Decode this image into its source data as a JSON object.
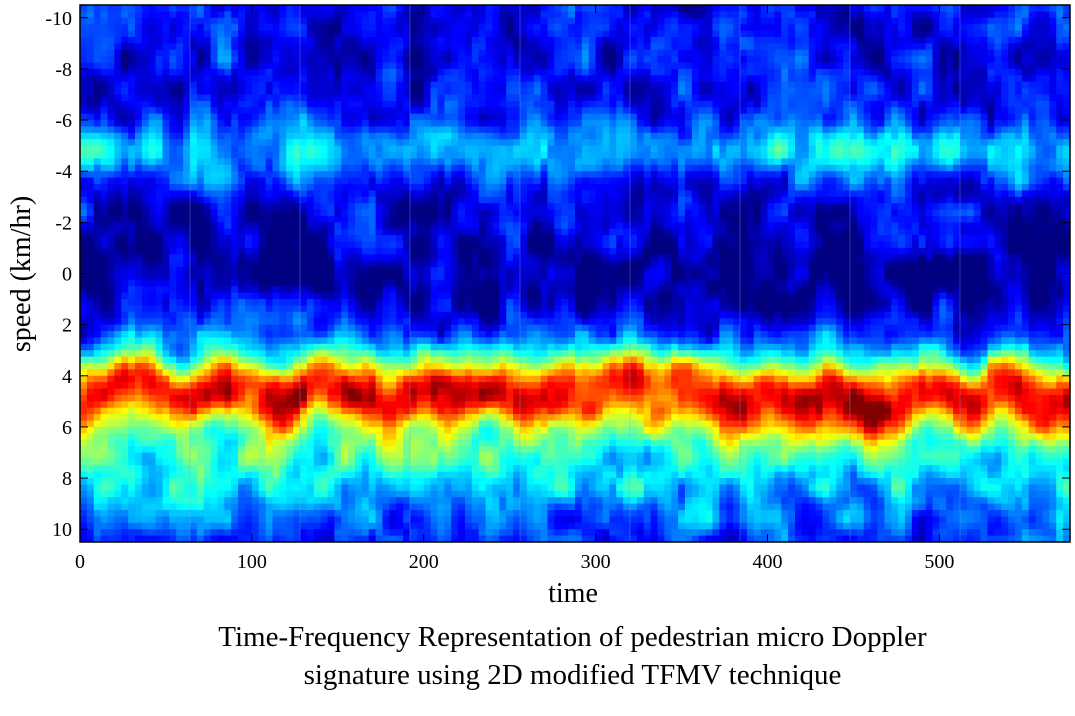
{
  "chart_data": {
    "type": "heatmap",
    "title": "",
    "xlabel": "time",
    "ylabel": "speed (km/hr)",
    "xlim": [
      0,
      576
    ],
    "ylim": [
      -10.5,
      10.5
    ],
    "y_reversed": true,
    "x_ticks": [
      0,
      100,
      200,
      300,
      400,
      500
    ],
    "x_tick_labels": [
      "0",
      "100",
      "200",
      "300",
      "400",
      "500"
    ],
    "y_ticks": [
      -10,
      -8,
      -6,
      -4,
      -2,
      0,
      2,
      4,
      6,
      8,
      10
    ],
    "y_tick_labels": [
      "-10",
      "-8",
      "-6",
      "-4",
      "-2",
      "0",
      "2",
      "4",
      "6",
      "8",
      "10"
    ],
    "colormap": "jet",
    "frame_boundaries": [
      64,
      128,
      192,
      256,
      320,
      384,
      448,
      512
    ],
    "dominant_ridge": {
      "x": [
        0,
        20,
        40,
        60,
        80,
        100,
        120,
        140,
        160,
        180,
        200,
        220,
        240,
        260,
        280,
        300,
        320,
        340,
        360,
        380,
        400,
        420,
        440,
        460,
        480,
        500,
        520,
        540,
        560,
        576
      ],
      "speed": [
        5,
        4.3,
        4.2,
        5,
        4.2,
        4.5,
        5.1,
        4,
        4.6,
        5.2,
        4,
        4.8,
        4.2,
        5,
        4.7,
        4.8,
        4.2,
        4.5,
        4.6,
        5.2,
        4.5,
        5.1,
        4.6,
        5.4,
        4.8,
        4.3,
        5.2,
        4.2,
        4.8,
        5.3
      ]
    }
  },
  "caption": {
    "line1": "Time-Frequency Representation of pedestrian micro Doppler",
    "line2": "signature using 2D modified TFMV technique"
  }
}
